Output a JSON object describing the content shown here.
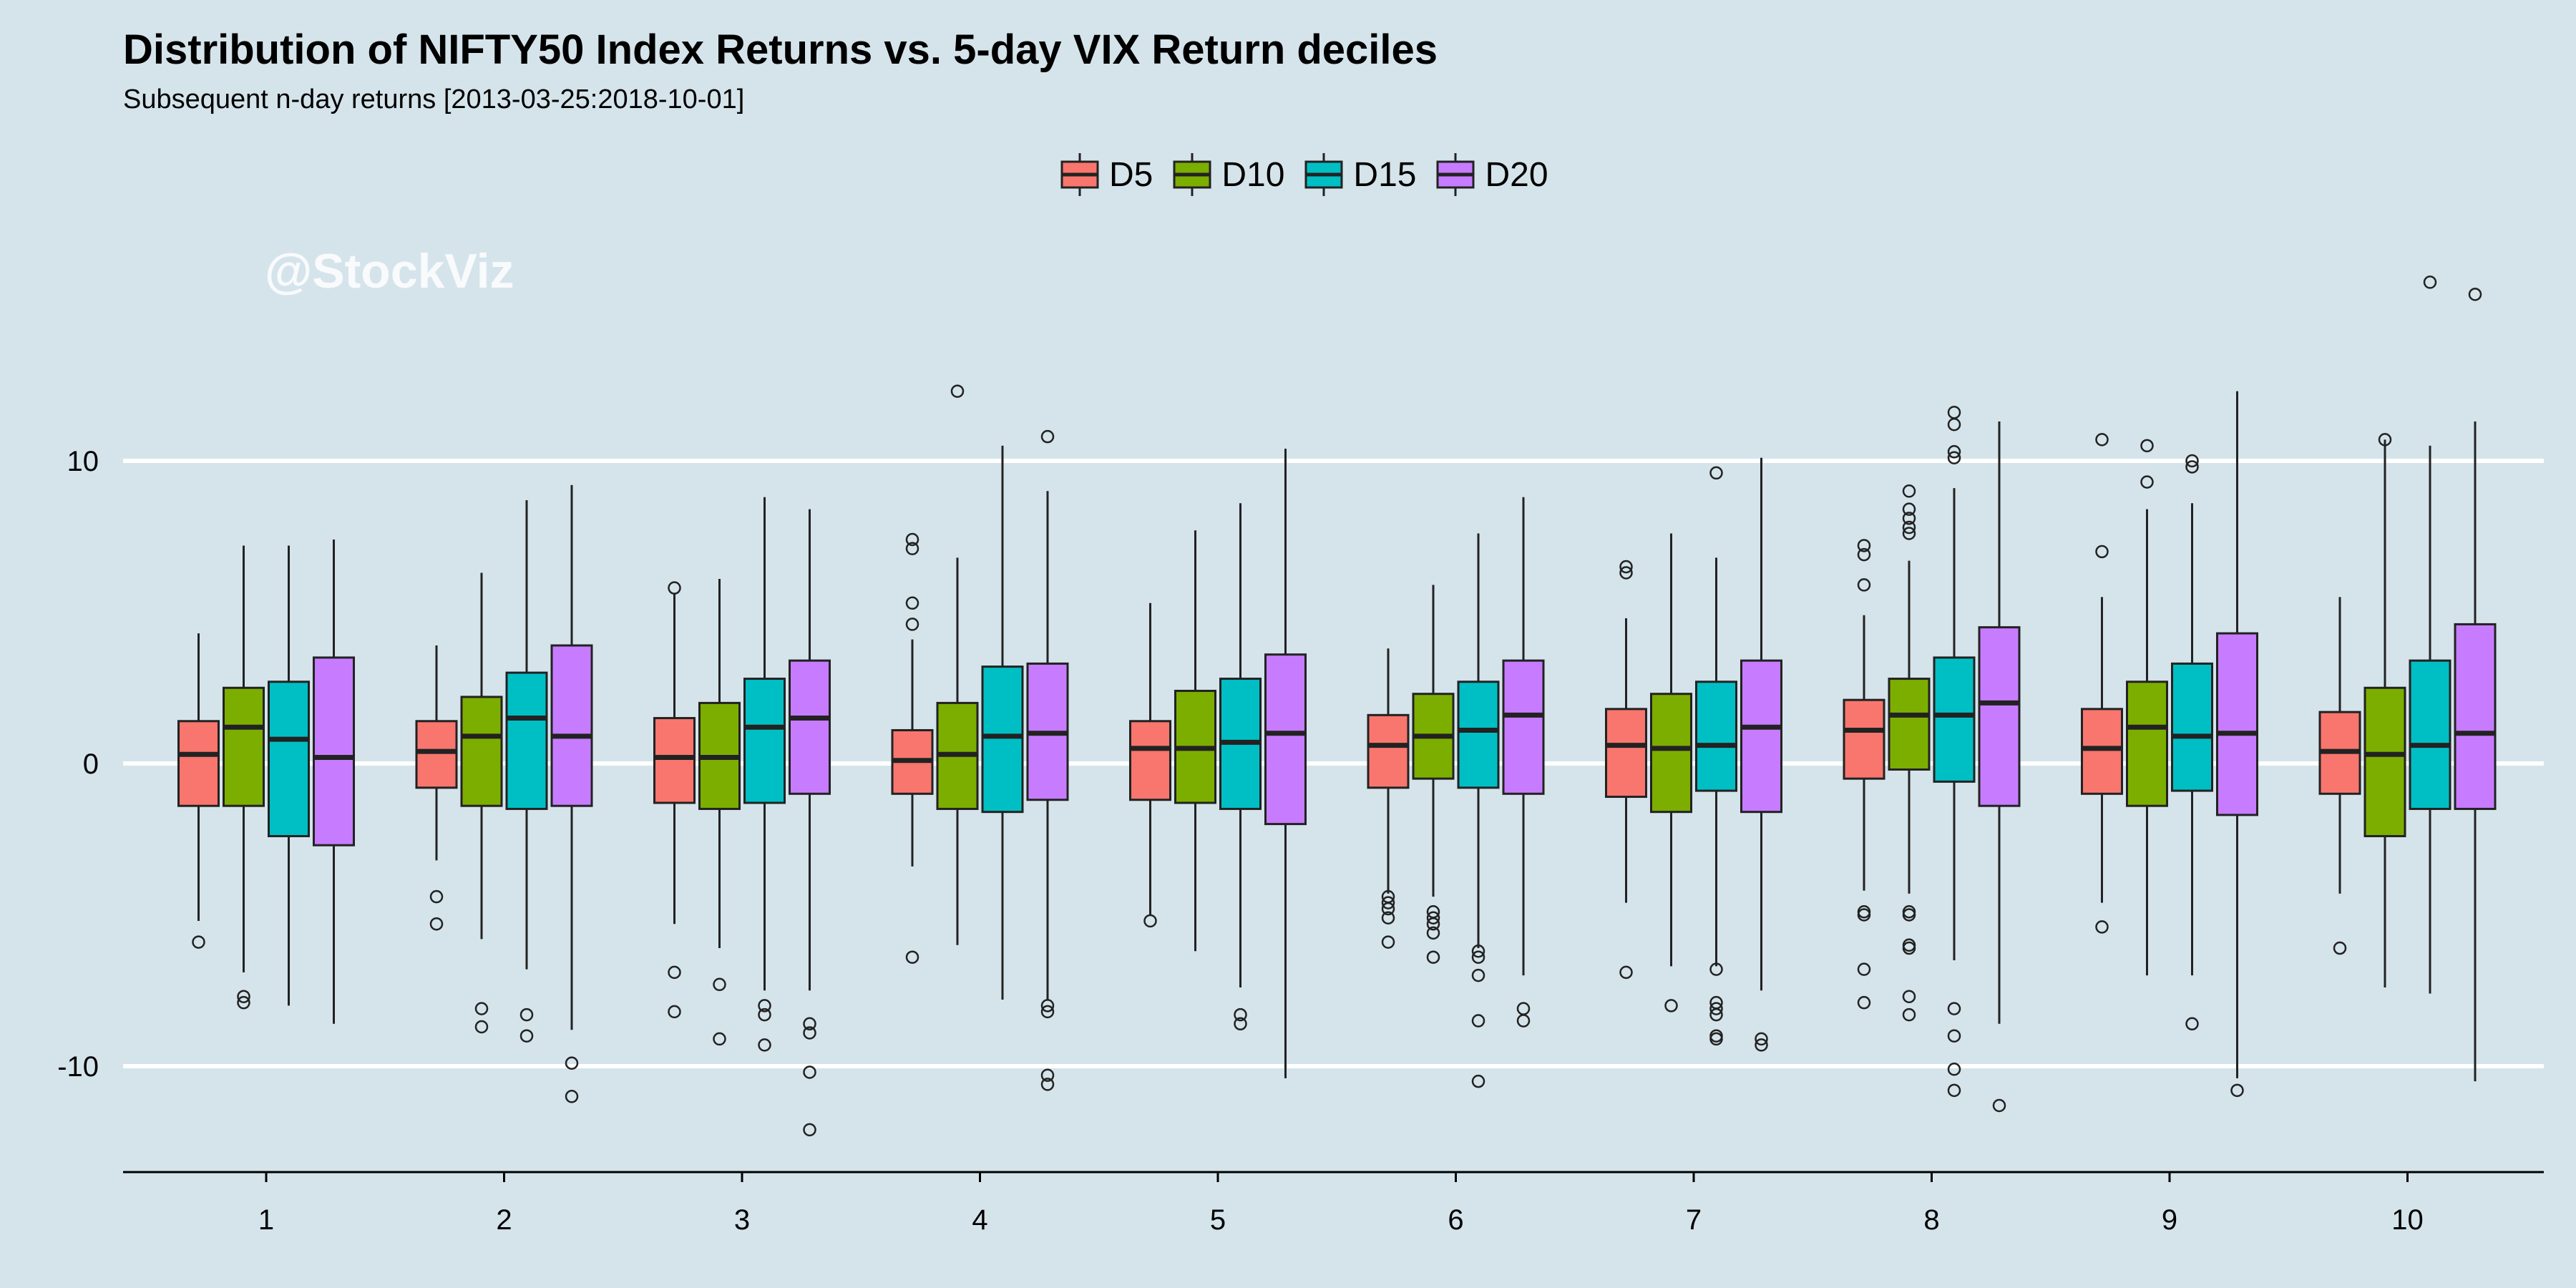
{
  "title": "Distribution of NIFTY50 Index Returns vs. 5-day VIX Return deciles",
  "subtitle": "Subsequent n-day returns [2013-03-25:2018-10-01]",
  "watermark": "@StockViz",
  "colors": {
    "background": "#d5e4eb",
    "gridline": "#ffffff",
    "box_outline": "#222222",
    "D5": "#f8766d",
    "D10": "#7cae00",
    "D15": "#00bfc4",
    "D20": "#c77cff"
  },
  "chart_data": {
    "type": "boxplot",
    "title": "Distribution of NIFTY50 Index Returns vs. 5-day VIX Return deciles",
    "subtitle": "Subsequent n-day returns [2013-03-25:2018-10-01]",
    "xlabel": "",
    "ylabel": "",
    "categories": [
      "1",
      "2",
      "3",
      "4",
      "5",
      "6",
      "7",
      "8",
      "9",
      "10"
    ],
    "yticks": [
      -10,
      0,
      10
    ],
    "ylim": [
      -13.5,
      17.5
    ],
    "grid": "horizontal major only",
    "legend_position": "top",
    "series": [
      {
        "name": "D5",
        "color": "#f8766d",
        "boxes": [
          {
            "whislo": -5.2,
            "q1": -1.4,
            "med": 0.3,
            "q3": 1.4,
            "whishi": 4.3,
            "fliers": [
              -5.9
            ]
          },
          {
            "whislo": -3.2,
            "q1": -0.8,
            "med": 0.4,
            "q3": 1.4,
            "whishi": 3.9,
            "fliers": [
              -4.4,
              -5.3
            ]
          },
          {
            "whislo": -5.3,
            "q1": -1.3,
            "med": 0.2,
            "q3": 1.5,
            "whishi": 5.6,
            "fliers": [
              5.8,
              -6.9,
              -8.2
            ]
          },
          {
            "whislo": -3.4,
            "q1": -1.0,
            "med": 0.1,
            "q3": 1.1,
            "whishi": 4.1,
            "fliers": [
              7.4,
              7.1,
              5.3,
              4.6,
              -6.4
            ]
          },
          {
            "whislo": -5.0,
            "q1": -1.2,
            "med": 0.5,
            "q3": 1.4,
            "whishi": 5.3,
            "fliers": [
              -5.2
            ]
          },
          {
            "whislo": -4.3,
            "q1": -0.8,
            "med": 0.6,
            "q3": 1.6,
            "whishi": 3.8,
            "fliers": [
              -4.4,
              -4.6,
              -4.8,
              -5.1,
              -5.9
            ]
          },
          {
            "whislo": -4.6,
            "q1": -1.1,
            "med": 0.6,
            "q3": 1.8,
            "whishi": 4.8,
            "fliers": [
              6.5,
              6.3,
              -6.9
            ]
          },
          {
            "whislo": -4.2,
            "q1": -0.5,
            "med": 1.1,
            "q3": 2.1,
            "whishi": 4.9,
            "fliers": [
              7.2,
              6.9,
              5.9,
              -4.9,
              -5.0,
              -6.8,
              -7.9
            ]
          },
          {
            "whislo": -4.6,
            "q1": -1.0,
            "med": 0.5,
            "q3": 1.8,
            "whishi": 5.5,
            "fliers": [
              10.7,
              7.0,
              -5.4
            ]
          },
          {
            "whislo": -4.3,
            "q1": -1.0,
            "med": 0.4,
            "q3": 1.7,
            "whishi": 5.5,
            "fliers": [
              -6.1
            ]
          }
        ]
      },
      {
        "name": "D10",
        "color": "#7cae00",
        "boxes": [
          {
            "whislo": -6.9,
            "q1": -1.4,
            "med": 1.2,
            "q3": 2.5,
            "whishi": 7.2,
            "fliers": [
              -7.7,
              -7.9
            ]
          },
          {
            "whislo": -5.8,
            "q1": -1.4,
            "med": 0.9,
            "q3": 2.2,
            "whishi": 6.3,
            "fliers": [
              -8.1,
              -8.7
            ]
          },
          {
            "whislo": -6.1,
            "q1": -1.5,
            "med": 0.2,
            "q3": 2.0,
            "whishi": 6.1,
            "fliers": [
              -7.3,
              -9.1
            ]
          },
          {
            "whislo": -6.0,
            "q1": -1.5,
            "med": 0.3,
            "q3": 2.0,
            "whishi": 6.8,
            "fliers": [
              12.3
            ]
          },
          {
            "whislo": -6.2,
            "q1": -1.3,
            "med": 0.5,
            "q3": 2.4,
            "whishi": 7.7,
            "fliers": []
          },
          {
            "whislo": -4.4,
            "q1": -0.5,
            "med": 0.9,
            "q3": 2.3,
            "whishi": 5.9,
            "fliers": [
              -4.9,
              -5.1,
              -5.3,
              -5.6,
              -6.4
            ]
          },
          {
            "whislo": -6.7,
            "q1": -1.6,
            "med": 0.5,
            "q3": 2.3,
            "whishi": 7.6,
            "fliers": [
              -8.0
            ]
          },
          {
            "whislo": -4.3,
            "q1": -0.2,
            "med": 1.6,
            "q3": 2.8,
            "whishi": 6.7,
            "fliers": [
              9.0,
              8.4,
              8.1,
              7.8,
              7.6,
              -4.9,
              -5.0,
              -6.0,
              -6.1,
              -7.7,
              -8.3
            ]
          },
          {
            "whislo": -7.0,
            "q1": -1.4,
            "med": 1.2,
            "q3": 2.7,
            "whishi": 8.4,
            "fliers": [
              10.5,
              9.3
            ]
          },
          {
            "whislo": -7.4,
            "q1": -2.4,
            "med": 0.3,
            "q3": 2.5,
            "whishi": 10.7,
            "fliers": [
              10.7
            ]
          }
        ]
      },
      {
        "name": "D15",
        "color": "#00bfc4",
        "boxes": [
          {
            "whislo": -8.0,
            "q1": -2.4,
            "med": 0.8,
            "q3": 2.7,
            "whishi": 7.2,
            "fliers": []
          },
          {
            "whislo": -6.8,
            "q1": -1.5,
            "med": 1.5,
            "q3": 3.0,
            "whishi": 8.7,
            "fliers": [
              -8.3,
              -9.0
            ]
          },
          {
            "whislo": -7.5,
            "q1": -1.3,
            "med": 1.2,
            "q3": 2.8,
            "whishi": 8.8,
            "fliers": [
              -8.0,
              -8.3,
              -9.3
            ]
          },
          {
            "whislo": -7.8,
            "q1": -1.6,
            "med": 0.9,
            "q3": 3.2,
            "whishi": 10.5,
            "fliers": []
          },
          {
            "whislo": -7.4,
            "q1": -1.5,
            "med": 0.7,
            "q3": 2.8,
            "whishi": 8.6,
            "fliers": [
              -8.3,
              -8.6
            ]
          },
          {
            "whislo": -6.1,
            "q1": -0.8,
            "med": 1.1,
            "q3": 2.7,
            "whishi": 7.6,
            "fliers": [
              -6.2,
              -6.4,
              -7.0,
              -8.5,
              -10.5
            ]
          },
          {
            "whislo": -6.7,
            "q1": -0.9,
            "med": 0.6,
            "q3": 2.7,
            "whishi": 6.8,
            "fliers": [
              9.6,
              -6.8,
              -7.9,
              -8.1,
              -8.3,
              -9.0,
              -9.1
            ]
          },
          {
            "whislo": -6.5,
            "q1": -0.6,
            "med": 1.6,
            "q3": 3.5,
            "whishi": 9.1,
            "fliers": [
              11.6,
              11.2,
              10.3,
              10.1,
              -8.1,
              -9.0,
              -10.1,
              -10.8
            ]
          },
          {
            "whislo": -7.0,
            "q1": -0.9,
            "med": 0.9,
            "q3": 3.3,
            "whishi": 8.6,
            "fliers": [
              10.0,
              9.8,
              -8.6
            ]
          },
          {
            "whislo": -7.6,
            "q1": -1.5,
            "med": 0.6,
            "q3": 3.4,
            "whishi": 10.5,
            "fliers": [
              15.9
            ]
          }
        ]
      },
      {
        "name": "D20",
        "color": "#c77cff",
        "boxes": [
          {
            "whislo": -8.6,
            "q1": -2.7,
            "med": 0.2,
            "q3": 3.5,
            "whishi": 7.4,
            "fliers": []
          },
          {
            "whislo": -8.8,
            "q1": -1.4,
            "med": 0.9,
            "q3": 3.9,
            "whishi": 9.2,
            "fliers": [
              -9.9,
              -11.0
            ]
          },
          {
            "whislo": -7.5,
            "q1": -1.0,
            "med": 1.5,
            "q3": 3.4,
            "whishi": 8.4,
            "fliers": [
              -8.6,
              -8.9,
              -10.2,
              -12.1
            ]
          },
          {
            "whislo": -7.8,
            "q1": -1.2,
            "med": 1.0,
            "q3": 3.3,
            "whishi": 9.0,
            "fliers": [
              10.8,
              -8.0,
              -8.2,
              -10.3,
              -10.6
            ]
          },
          {
            "whislo": -10.4,
            "q1": -2.0,
            "med": 1.0,
            "q3": 3.6,
            "whishi": 10.4,
            "fliers": []
          },
          {
            "whislo": -7.0,
            "q1": -1.0,
            "med": 1.6,
            "q3": 3.4,
            "whishi": 8.8,
            "fliers": [
              -8.1,
              -8.5
            ]
          },
          {
            "whislo": -7.5,
            "q1": -1.6,
            "med": 1.2,
            "q3": 3.4,
            "whishi": 10.1,
            "fliers": [
              -9.1,
              -9.3
            ]
          },
          {
            "whislo": -8.6,
            "q1": -1.4,
            "med": 2.0,
            "q3": 4.5,
            "whishi": 11.3,
            "fliers": [
              -11.3
            ]
          },
          {
            "whislo": -10.4,
            "q1": -1.7,
            "med": 1.0,
            "q3": 4.3,
            "whishi": 12.3,
            "fliers": [
              -10.8
            ]
          },
          {
            "whislo": -10.5,
            "q1": -1.5,
            "med": 1.0,
            "q3": 4.6,
            "whishi": 11.3,
            "fliers": [
              15.5
            ]
          }
        ]
      }
    ]
  }
}
